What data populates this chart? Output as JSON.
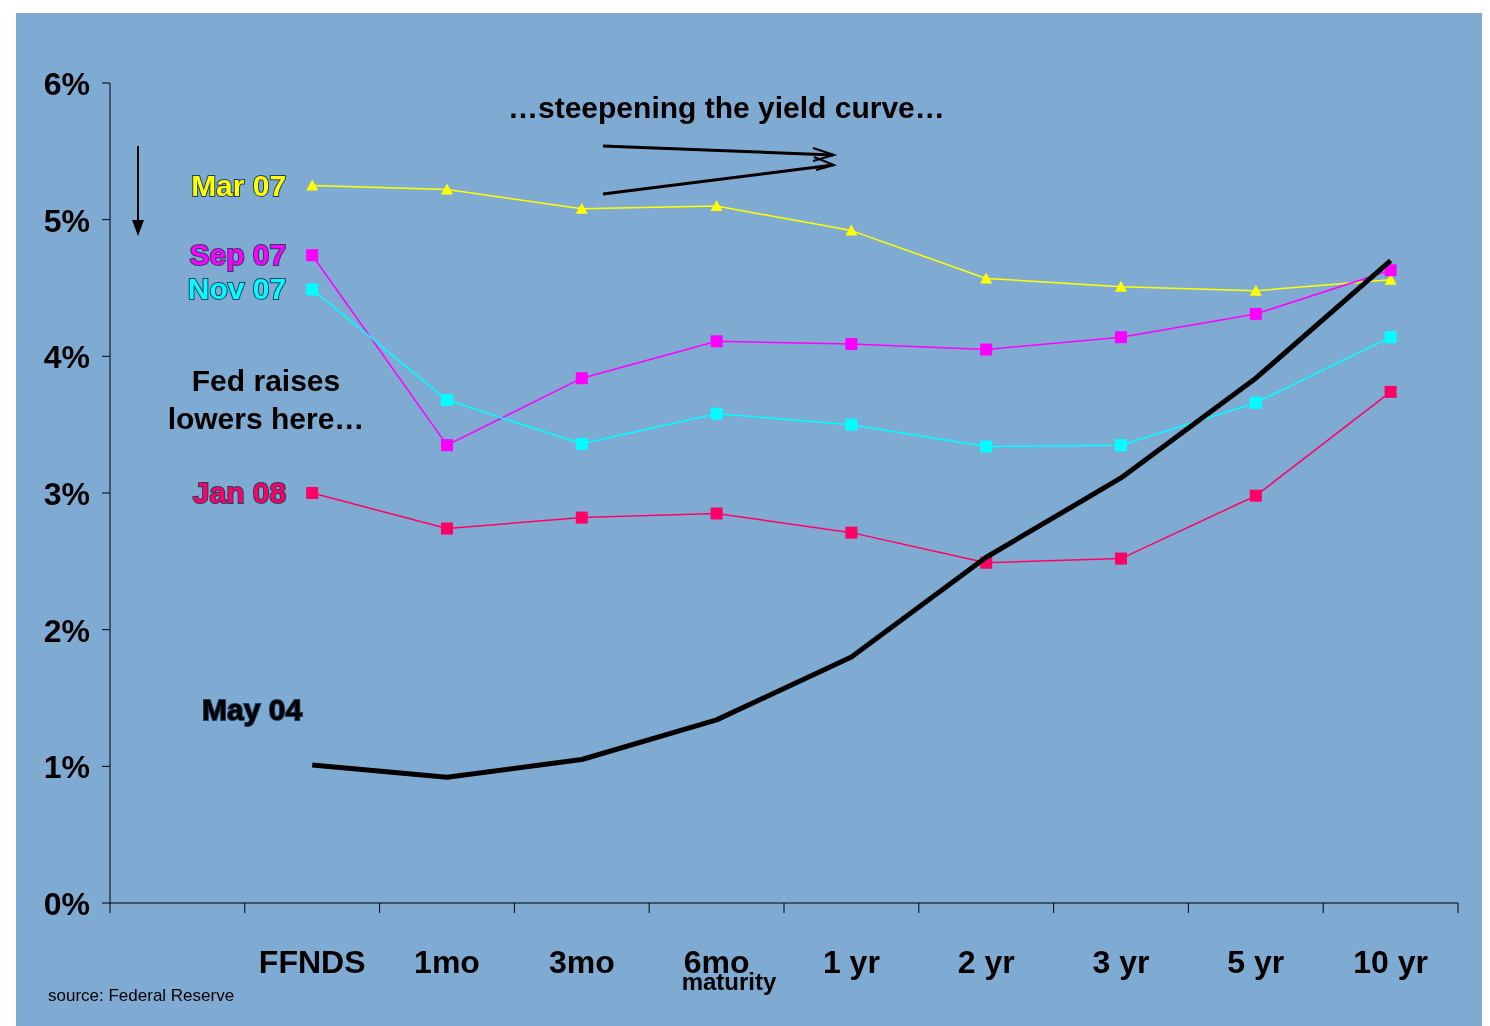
{
  "chart_data": {
    "type": "line",
    "xlabel": "maturity",
    "categories": [
      null,
      "FFNDS",
      "1mo",
      "3mo",
      "6mo",
      "1 yr",
      "2 yr",
      "3 yr",
      "5 yr",
      "10 yr"
    ],
    "series": [
      {
        "name": "Mar 07",
        "color": "#ffff00",
        "marker": "triangle",
        "values": [
          null,
          5.25,
          5.22,
          5.08,
          5.1,
          4.92,
          4.57,
          4.51,
          4.48,
          4.56
        ]
      },
      {
        "name": "Sep 07",
        "color": "#ff00ff",
        "marker": "square",
        "values": [
          null,
          4.74,
          3.35,
          3.84,
          4.11,
          4.09,
          4.05,
          4.14,
          4.31,
          4.63
        ]
      },
      {
        "name": "Nov 07",
        "color": "#00ffff",
        "marker": "square",
        "values": [
          null,
          4.49,
          3.68,
          3.36,
          3.58,
          3.5,
          3.34,
          3.35,
          3.66,
          4.14
        ]
      },
      {
        "name": "Jan 08",
        "color": "#ff0066",
        "marker": "square",
        "values": [
          null,
          3.0,
          2.74,
          2.82,
          2.85,
          2.71,
          2.49,
          2.52,
          2.98,
          3.74
        ]
      },
      {
        "name": "May 04",
        "color": "#000000",
        "marker": "none",
        "values": [
          null,
          1.01,
          0.92,
          1.05,
          1.34,
          1.8,
          2.53,
          3.11,
          3.84,
          4.7
        ]
      }
    ],
    "ylim": [
      0,
      6
    ],
    "yticks": [
      {
        "value": 0,
        "label": "0%"
      },
      {
        "value": 1,
        "label": "1%"
      },
      {
        "value": 2,
        "label": "2%"
      },
      {
        "value": 3,
        "label": "3%"
      },
      {
        "value": 4,
        "label": "4%"
      },
      {
        "value": 5,
        "label": "5%"
      },
      {
        "value": 6,
        "label": "6%"
      }
    ],
    "grid": false,
    "annotations": [
      "…steepening the yield curve…",
      "Fed raises\nlowers here…",
      "source: Federal Reserve"
    ]
  }
}
